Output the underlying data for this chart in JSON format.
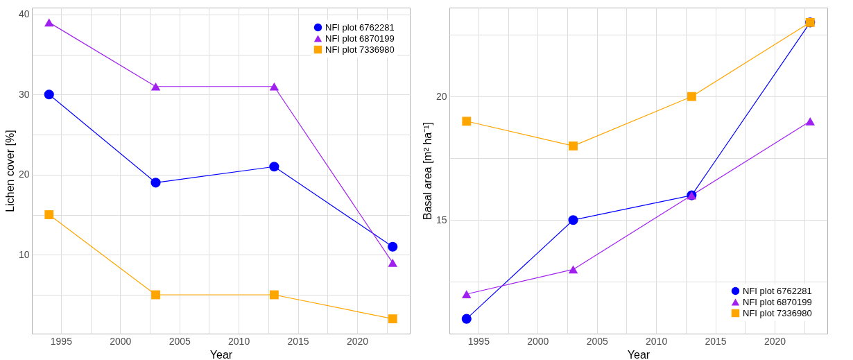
{
  "chart_data": [
    {
      "type": "line",
      "xlabel": "Year",
      "ylabel": "Lichen cover [%]",
      "x": [
        1994,
        2003,
        2013,
        2023
      ],
      "series": [
        {
          "name": "NFI plot 6762281",
          "color": "#0000ff",
          "marker": "circle",
          "values": [
            30,
            19,
            21,
            11
          ]
        },
        {
          "name": "NFI plot 6870199",
          "color": "#a020f0",
          "marker": "triangle",
          "values": [
            39,
            31,
            31,
            9
          ]
        },
        {
          "name": "NFI plot 7336980",
          "color": "#ffa500",
          "marker": "square",
          "values": [
            15,
            5,
            5,
            2
          ]
        }
      ],
      "xlim": [
        1992.55,
        2024.45
      ],
      "xticks": [
        1995,
        {
          "value": 1997.5,
          "label": null
        },
        2000,
        {
          "value": 2002.5,
          "label": null
        },
        2005,
        {
          "value": 2007.5,
          "label": null
        },
        2010,
        {
          "value": 2012.5,
          "label": null
        },
        2015,
        {
          "value": 2017.5,
          "label": null
        },
        2020,
        {
          "value": 2022.5,
          "label": null
        }
      ],
      "ylim": [
        0.15,
        40.85
      ],
      "yticks": [
        {
          "value": 5,
          "label": null
        },
        10,
        {
          "value": 15,
          "label": null
        },
        20,
        {
          "value": 25,
          "label": null
        },
        30,
        {
          "value": 35,
          "label": null
        },
        40
      ],
      "grid": true,
      "legend": "top right"
    },
    {
      "type": "line",
      "xlabel": "Year",
      "ylabel": "Basal area [m² ha⁻¹]",
      "x": [
        1994,
        2003,
        2013,
        2023
      ],
      "series": [
        {
          "name": "NFI plot 6762281",
          "color": "#0000ff",
          "marker": "circle",
          "values": [
            11,
            15,
            16,
            23
          ]
        },
        {
          "name": "NFI plot 6870199",
          "color": "#a020f0",
          "marker": "triangle",
          "values": [
            12,
            13,
            16,
            19
          ]
        },
        {
          "name": "NFI plot 7336980",
          "color": "#ffa500",
          "marker": "square",
          "values": [
            19,
            18,
            20,
            23
          ]
        }
      ],
      "xlim": [
        1992.55,
        2024.45
      ],
      "xticks": [
        1995,
        {
          "value": 1997.5,
          "label": null
        },
        2000,
        {
          "value": 2002.5,
          "label": null
        },
        2005,
        {
          "value": 2007.5,
          "label": null
        },
        2010,
        {
          "value": 2012.5,
          "label": null
        },
        2015,
        {
          "value": 2017.5,
          "label": null
        },
        2020,
        {
          "value": 2022.5,
          "label": null
        }
      ],
      "ylim": [
        10.4,
        23.6
      ],
      "yticks": [
        {
          "value": 12.5,
          "label": null
        },
        15,
        {
          "value": 17.5,
          "label": null
        },
        20,
        {
          "value": 22.5,
          "label": null
        }
      ],
      "grid": true,
      "legend": "bottom right"
    }
  ]
}
